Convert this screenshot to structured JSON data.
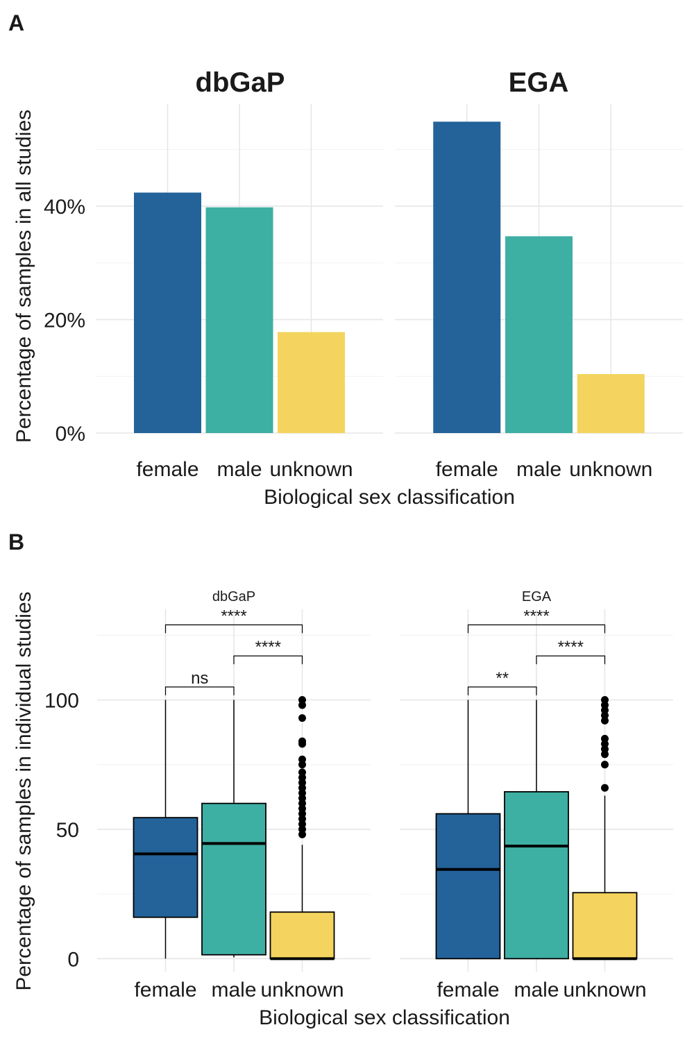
{
  "panel_labels": [
    "A",
    "B"
  ],
  "colors": {
    "female": "#23639a",
    "male": "#3eafa3",
    "unknown": "#f4d45e"
  },
  "chart_data": [
    {
      "type": "bar",
      "panel": "A",
      "ylabel": "Percentage of samples in all studies",
      "xlabel": "Biological sex classification",
      "ylim": [
        0,
        58
      ],
      "y_ticks": [
        0,
        20,
        40
      ],
      "y_tick_labels": [
        "0%",
        "20%",
        "40%"
      ],
      "categories": [
        "female",
        "male",
        "unknown"
      ],
      "facets": [
        {
          "name": "dbGaP",
          "values": [
            42.4,
            39.8,
            17.8
          ]
        },
        {
          "name": "EGA",
          "values": [
            54.9,
            34.7,
            10.4
          ]
        }
      ]
    },
    {
      "type": "box",
      "panel": "B",
      "ylabel": "Percentage of samples in individual studies",
      "xlabel": "Biological sex classification",
      "ylim": [
        -5,
        135
      ],
      "y_ticks": [
        0,
        50,
        100
      ],
      "y_tick_labels": [
        "0",
        "50",
        "100"
      ],
      "categories": [
        "female",
        "male",
        "unknown"
      ],
      "facets": [
        {
          "name": "dbGaP",
          "boxes": [
            {
              "q1": 16,
              "median": 40.5,
              "q3": 54.5,
              "lower": 0,
              "upper": 100,
              "outliers": []
            },
            {
              "q1": 1.5,
              "median": 44.5,
              "q3": 60,
              "lower": 0.5,
              "upper": 100,
              "outliers": []
            },
            {
              "q1": 0,
              "median": 0,
              "q3": 18,
              "lower": 0,
              "upper": 44,
              "outliers": [
                48,
                50,
                52,
                54,
                56,
                58,
                60,
                62,
                64,
                66,
                68,
                70,
                72,
                75,
                77,
                83,
                84,
                93,
                98,
                100
              ]
            }
          ],
          "comparisons": [
            {
              "from": 0,
              "to": 1,
              "label": "ns",
              "y": 105
            },
            {
              "from": 1,
              "to": 2,
              "label": "****",
              "y": 117
            },
            {
              "from": 0,
              "to": 2,
              "label": "****",
              "y": 129
            }
          ]
        },
        {
          "name": "EGA",
          "boxes": [
            {
              "q1": 0,
              "median": 34.5,
              "q3": 56,
              "lower": 0,
              "upper": 100,
              "outliers": []
            },
            {
              "q1": 0,
              "median": 43.5,
              "q3": 64.5,
              "lower": 0,
              "upper": 100,
              "outliers": []
            },
            {
              "q1": 0,
              "median": 0,
              "q3": 25.5,
              "lower": 0,
              "upper": 63,
              "outliers": [
                66,
                75,
                79,
                81,
                83,
                85,
                92,
                94,
                96,
                98,
                100
              ]
            }
          ],
          "comparisons": [
            {
              "from": 0,
              "to": 1,
              "label": "**",
              "y": 105
            },
            {
              "from": 1,
              "to": 2,
              "label": "****",
              "y": 117
            },
            {
              "from": 0,
              "to": 2,
              "label": "****",
              "y": 129
            }
          ]
        }
      ]
    }
  ]
}
